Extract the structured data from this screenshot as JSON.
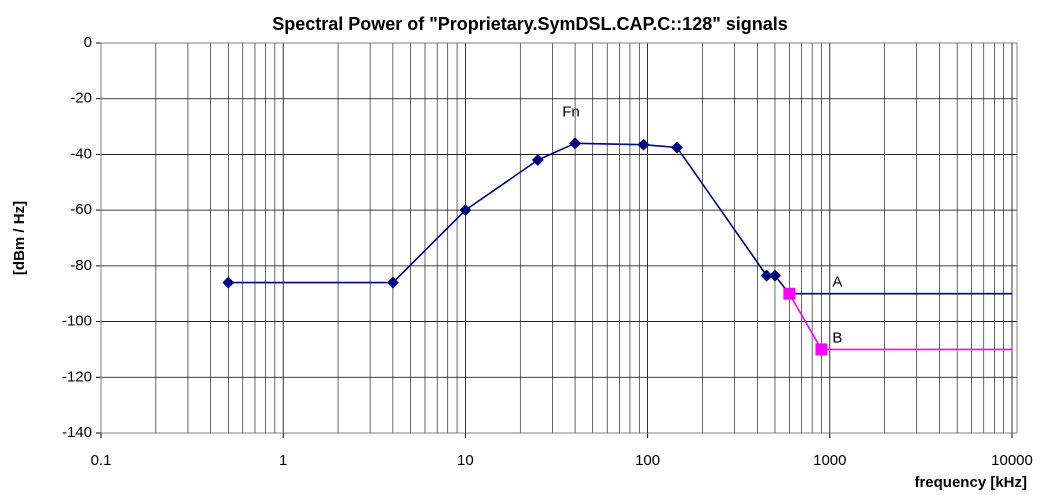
{
  "chart_data": {
    "type": "line",
    "title": "Spectral Power of \"Proprietary.SymDSL.CAP.C::128\" signals",
    "x_label": "frequency [kHz]",
    "y_label": "[dBm / Hz]",
    "x_log": true,
    "grid": true,
    "xlim": [
      0.1,
      10000
    ],
    "xticks": [
      0.1,
      1,
      10,
      100,
      1000,
      10000
    ],
    "ylim": [
      -140,
      0
    ],
    "yticks": [
      -140,
      -120,
      -100,
      -80,
      -60,
      -40,
      -20,
      0
    ],
    "series": [
      {
        "name": "Fn",
        "color": "#00007f",
        "marker": "diamond",
        "x": [
          0.5,
          4,
          10,
          25,
          40,
          95,
          145,
          450,
          500
        ],
        "values": [
          -86,
          -86,
          -60,
          -42,
          -36,
          -36.5,
          -37.5,
          -83.5,
          -83.5
        ]
      },
      {
        "name": "A",
        "color": "#00007f",
        "marker": "none",
        "x": [
          500,
          600,
          10000
        ],
        "values": [
          -83.5,
          -90,
          -90
        ]
      },
      {
        "name": "B",
        "color": "#ff00ff",
        "marker": "square",
        "x": [
          600,
          900
        ],
        "values": [
          -90,
          -110
        ]
      },
      {
        "name": "B",
        "color": "#ff00ff",
        "marker": "none",
        "x": [
          900,
          10000
        ],
        "values": [
          -110,
          -110
        ]
      }
    ],
    "annotations": [
      {
        "text": "Fn",
        "x": 38,
        "y": -25
      },
      {
        "text": "A",
        "x": 1100,
        "y": -86
      },
      {
        "text": "B",
        "x": 1100,
        "y": -106
      }
    ]
  }
}
